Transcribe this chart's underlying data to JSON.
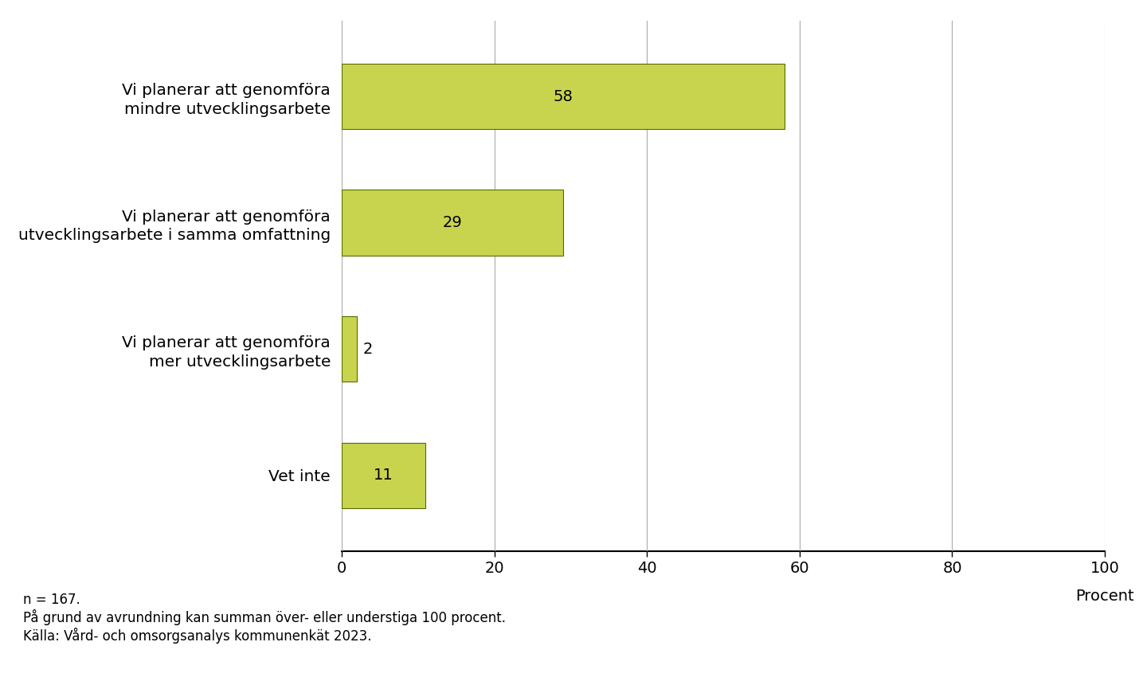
{
  "categories": [
    "Vet inte",
    "Vi planerar att genomföra\nmer utvecklingsarbete",
    "Vi planerar att genomföra\nutvecklingsarbete i samma omfattning",
    "Vi planerar att genomföra\nmindre utvecklingsarbete"
  ],
  "values": [
    11,
    2,
    29,
    58
  ],
  "bar_color": "#c8d44e",
  "bar_edgecolor": "#5a6a00",
  "value_labels": [
    "11",
    "2",
    "29",
    "58"
  ],
  "xlim": [
    0,
    100
  ],
  "xticks": [
    0,
    20,
    40,
    60,
    80,
    100
  ],
  "xlabel": "Procent",
  "background_color": "#ffffff",
  "grid_color": "#aaaaaa",
  "footnote_lines": [
    "n = 167.",
    "På grund av avrundning kan summan över- eller understiga 100 procent.",
    "Källa: Vård- och omsorgsanalys kommunenkät 2023."
  ],
  "bar_height": 0.52,
  "label_fontsize": 14.5,
  "tick_fontsize": 14,
  "value_fontsize": 14,
  "xlabel_fontsize": 14,
  "footnote_fontsize": 12
}
